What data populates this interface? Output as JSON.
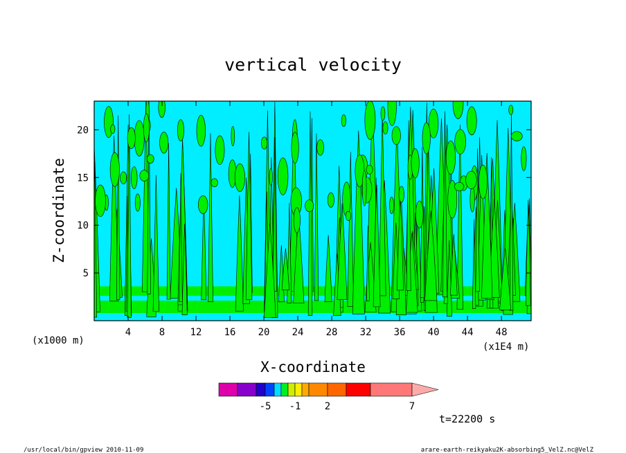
{
  "chart_data": {
    "type": "heatmap",
    "title": "vertical velocity",
    "xlabel": "X-coordinate",
    "ylabel": "Z-coordinate",
    "x_unit_left": "(x1000 m)",
    "x_unit_right": "(x1E4 m)",
    "time_label": "t=22200 s",
    "xlim": [
      0,
      51.5
    ],
    "ylim": [
      0,
      23
    ],
    "x_ticks": [
      4,
      8,
      12,
      16,
      20,
      24,
      28,
      32,
      36,
      40,
      44,
      48
    ],
    "y_ticks": [
      5,
      10,
      15,
      20
    ],
    "colorbar": {
      "levels": [
        -7,
        -6,
        -5,
        -4,
        -3,
        -2,
        -1,
        0,
        1,
        2,
        3,
        5,
        7,
        10
      ],
      "colors": [
        "#dd00aa",
        "#8800cc",
        "#2200cc",
        "#0044ff",
        "#00ddff",
        "#00ee22",
        "#ccee00",
        "#ffee00",
        "#ffaa00",
        "#ff8800",
        "#ff6600",
        "#ff0000",
        "#ff7777",
        "#ffaaaa"
      ],
      "tick_labels": [
        "-5",
        "-1",
        "2",
        "7"
      ],
      "tick_values": [
        -5,
        -1,
        2,
        7
      ]
    },
    "fill_colors": {
      "negative": "#00eeff",
      "positive": "#00ee00",
      "contour_line": "#000000"
    },
    "grid": false
  },
  "footer": {
    "left": "/usr/local/bin/gpview  2010-11-09",
    "right": "arare-earth-reikyaku2K-absorbing5_VelZ.nc@VelZ"
  }
}
